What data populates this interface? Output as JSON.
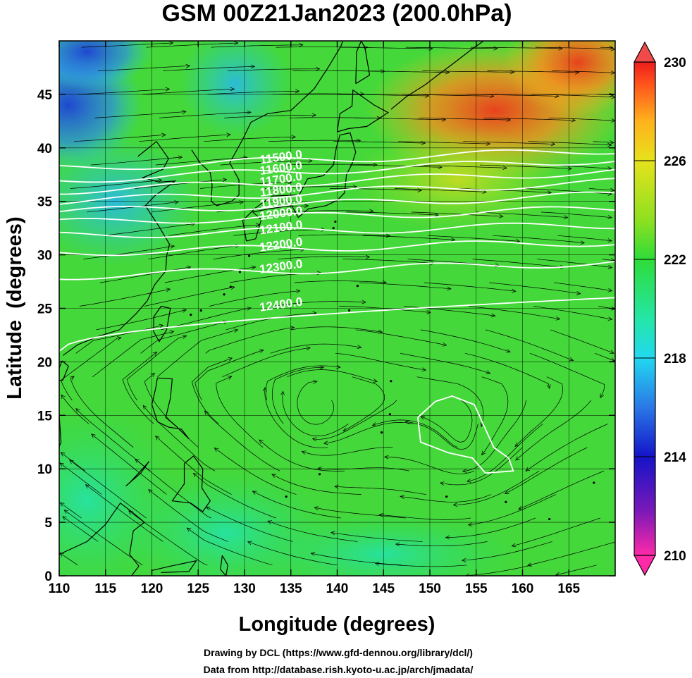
{
  "map": {
    "title": "GSM 00Z21Jan2023 (200.0hPa)",
    "xlabel": "Longitude (degrees)",
    "ylabel": "Latitude  (degrees)",
    "credit_line1": "Drawing by DCL (https://www.gfd-dennou.org/library/dcl/)",
    "credit_line2": "Data from http://database.rish.kyoto-u.ac.jp/arch/jmadata/",
    "lon_range": [
      110,
      170
    ],
    "lat_range": [
      0,
      50
    ],
    "lon_ticks": [
      "110",
      "115",
      "120",
      "125",
      "130",
      "135",
      "140",
      "145",
      "150",
      "155",
      "160",
      "165"
    ],
    "lat_ticks": [
      "0",
      "5",
      "10",
      "15",
      "20",
      "25",
      "30",
      "35",
      "40",
      "45"
    ],
    "colorbar": {
      "range": [
        210,
        230
      ],
      "labels": [
        "230",
        "226",
        "222",
        "218",
        "214",
        "210"
      ],
      "colors": [
        "#ff2aa8",
        "#7a18b8",
        "#1414c8",
        "#2a78e6",
        "#22d8f0",
        "#24e6a6",
        "#2edc38",
        "#8ee020",
        "#e6e21c",
        "#ffb21c",
        "#ff5a1c",
        "#ee1c1c"
      ]
    },
    "contours": [
      {
        "label": "11500.0",
        "lat_w": 38.1,
        "lat_e": 39.8
      },
      {
        "label": "11600.0",
        "lat_w": 37.0,
        "lat_e": 38.9
      },
      {
        "label": "11700.0",
        "lat_w": 36.0,
        "lat_e": 37.8
      },
      {
        "label": "11800.0",
        "lat_w": 35.0,
        "lat_e": 36.8
      },
      {
        "label": "11900.0",
        "lat_w": 34.0,
        "lat_e": 35.6
      },
      {
        "label": "12000.0",
        "lat_w": 33.0,
        "lat_e": 34.3
      },
      {
        "label": "12100.0",
        "lat_w": 31.8,
        "lat_e": 32.8
      },
      {
        "label": "12200.0",
        "lat_w": 30.2,
        "lat_e": 31.2
      },
      {
        "label": "12300.0",
        "lat_w": 28.0,
        "lat_e": 29.3
      },
      {
        "label": "12400.0",
        "lat_w": 21.0,
        "lat_e": 26.0
      }
    ],
    "closed_contour_lonlat": [
      [
        148.7,
        14.8
      ],
      [
        150.6,
        16.3
      ],
      [
        152.4,
        16.8
      ],
      [
        154.8,
        16.0
      ],
      [
        156.9,
        12.0
      ],
      [
        158.5,
        11.0
      ],
      [
        159.0,
        9.8
      ],
      [
        156.0,
        9.6
      ],
      [
        154.6,
        11.0
      ],
      [
        152.0,
        11.5
      ],
      [
        149.0,
        12.5
      ],
      [
        148.7,
        14.8
      ]
    ],
    "temperature_features": [
      {
        "lon": 112,
        "lat": 42,
        "value": 216
      },
      {
        "lon": 114,
        "lat": 48,
        "value": 218
      },
      {
        "lon": 157,
        "lat": 43,
        "value": 228
      },
      {
        "lon": 167,
        "lat": 48,
        "value": 229
      },
      {
        "lon": 155,
        "lat": 39,
        "value": 226
      },
      {
        "lon": 115,
        "lat": 8,
        "value": 220
      },
      {
        "lon": 130,
        "lat": 20,
        "value": 221
      }
    ],
    "vortices": [
      {
        "lon": 137.5,
        "lat": 15.0
      },
      {
        "lon": 154.0,
        "lat": 11.5
      }
    ]
  }
}
